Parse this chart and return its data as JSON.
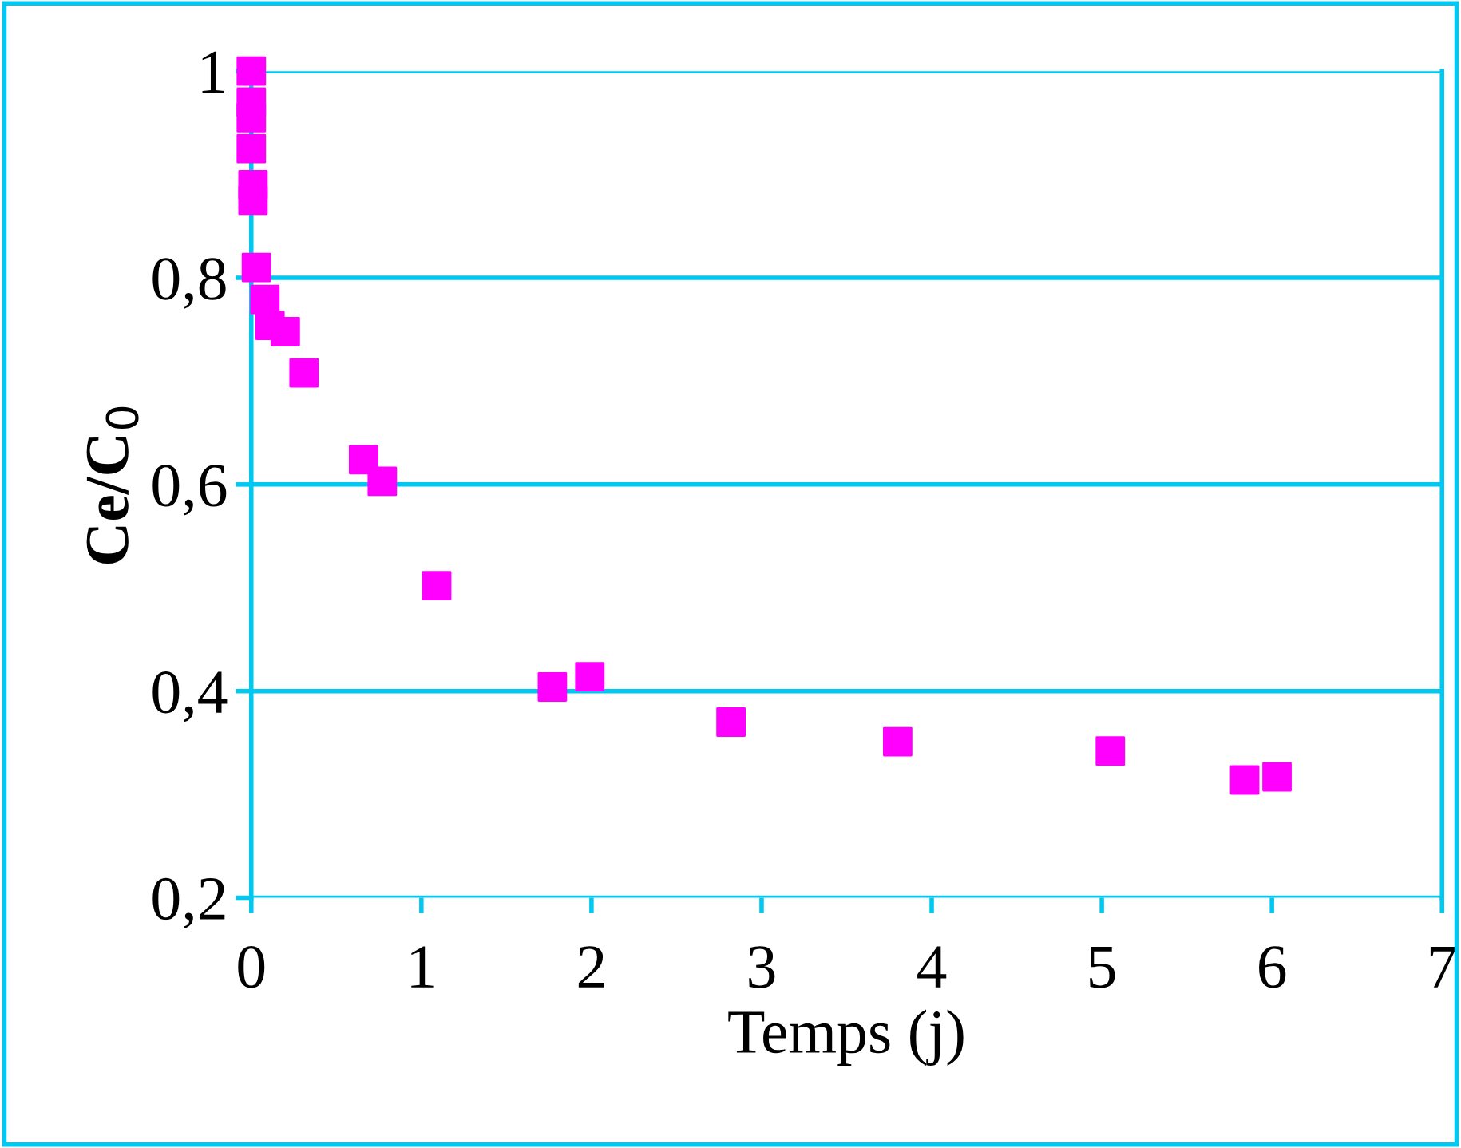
{
  "chart_data": {
    "type": "scatter",
    "xlabel": "Temps (j)",
    "ylabel": "Ce/C$_{0}$",
    "x": [
      0.0,
      0.0,
      0.0,
      0.0,
      0.01,
      0.01,
      0.03,
      0.08,
      0.11,
      0.2,
      0.31,
      0.66,
      0.77,
      1.09,
      1.77,
      1.99,
      2.82,
      3.8,
      5.05,
      5.84,
      6.03
    ],
    "series": [
      {
        "color": "#ff00ff",
        "values": [
          1.0,
          0.97,
          0.955,
          0.925,
          0.89,
          0.875,
          0.81,
          0.779,
          0.754,
          0.748,
          0.708,
          0.624,
          0.603,
          0.502,
          0.404,
          0.414,
          0.37,
          0.351,
          0.342,
          0.314,
          0.317
        ]
      }
    ],
    "xlim": [
      0,
      7
    ],
    "xticks": [
      0,
      1,
      2,
      3,
      4,
      5,
      6,
      7
    ],
    "ylim": [
      0.2,
      1
    ],
    "yticks": [
      {
        "value": 0.2,
        "label": "0,2"
      },
      {
        "value": 0.4,
        "label": "0,4"
      },
      {
        "value": 0.6,
        "label": "0,6"
      },
      {
        "value": 0.8,
        "label": "0,8"
      },
      {
        "value": 1,
        "label": "1"
      }
    ],
    "grid": "y",
    "marker": "square"
  }
}
